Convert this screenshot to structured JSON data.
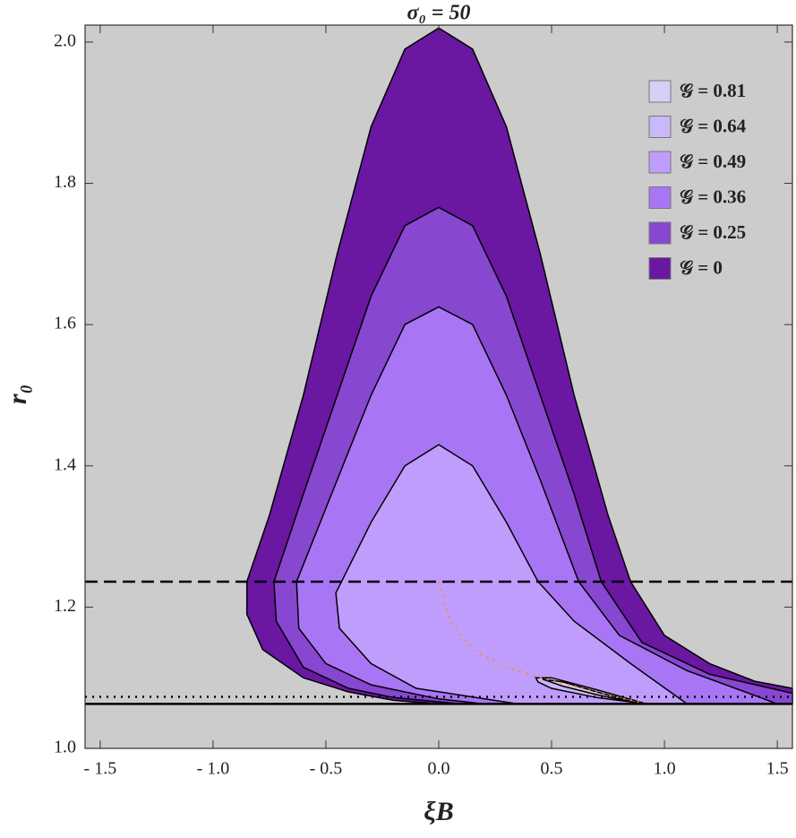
{
  "chart_data": {
    "type": "region",
    "title": "σ₀ = 50",
    "x_label": "ξB",
    "y_label": "r₀",
    "xlim": [
      -1.567,
      1.567
    ],
    "ylim": [
      1.0,
      2.024
    ],
    "xticks": [
      {
        "value": -1.5,
        "label": "- 1.5"
      },
      {
        "value": -1.0,
        "label": "- 1.0"
      },
      {
        "value": -0.5,
        "label": "- 0.5"
      },
      {
        "value": 0,
        "label": "0.0"
      },
      0.5,
      {
        "value": 1.0,
        "label": "1.0"
      },
      1.5
    ],
    "yticks": [
      {
        "value": 1.0,
        "label": "1.0"
      },
      1.2,
      1.4,
      1.6,
      1.8,
      {
        "value": 2.0,
        "label": "2.0"
      }
    ],
    "background": "#cccccc",
    "legend_position": "upper right",
    "series": [
      {
        "name": "𝒢 = 0.81",
        "color": "#d6cff7",
        "x": [
          0.46,
          0.55,
          0.7,
          0.88,
          0.7,
          0.55
        ],
        "y": [
          1.098,
          1.094,
          1.08,
          1.064,
          1.076,
          1.088
        ]
      },
      {
        "name": "𝒢 = 0.64",
        "color": "#c9b8fb",
        "x": [
          0.43,
          0.5,
          0.7,
          0.92,
          0.7,
          0.5,
          0.44
        ],
        "y": [
          1.1,
          1.1,
          1.083,
          1.063,
          1.072,
          1.085,
          1.094
        ]
      },
      {
        "name": "𝒢 = 0.49",
        "color": "#bf9dfd",
        "x": [
          0.35,
          -0.1,
          -0.3,
          -0.44,
          -0.456,
          -0.3,
          -0.15,
          0,
          0.15,
          0.3,
          0.44,
          0.6,
          0.85,
          1.1
        ],
        "y": [
          1.063,
          1.085,
          1.12,
          1.17,
          1.22,
          1.32,
          1.4,
          1.43,
          1.4,
          1.32,
          1.236,
          1.18,
          1.12,
          1.063
        ]
      },
      {
        "name": "𝒢 = 0.36",
        "color": "#a876f5",
        "x": [
          0.2,
          0,
          -0.3,
          -0.5,
          -0.62,
          -0.63,
          -0.45,
          -0.3,
          -0.15,
          0,
          0.15,
          0.3,
          0.45,
          0.62,
          0.8,
          1.1,
          1.4,
          1.5
        ],
        "y": [
          1.063,
          1.07,
          1.09,
          1.12,
          1.17,
          1.236,
          1.38,
          1.5,
          1.6,
          1.625,
          1.6,
          1.5,
          1.38,
          1.236,
          1.16,
          1.11,
          1.075,
          1.063
        ]
      },
      {
        "name": "𝒢 = 0.25",
        "color": "#8747d0",
        "x": [
          0.1,
          -0.2,
          -0.4,
          -0.6,
          -0.72,
          -0.73,
          -0.6,
          -0.45,
          -0.3,
          -0.15,
          0,
          0.15,
          0.3,
          0.45,
          0.6,
          0.72,
          0.9,
          1.2,
          1.567,
          1.567
        ],
        "y": [
          1.063,
          1.072,
          1.085,
          1.115,
          1.18,
          1.236,
          1.36,
          1.5,
          1.64,
          1.74,
          1.766,
          1.74,
          1.64,
          1.5,
          1.36,
          1.236,
          1.15,
          1.105,
          1.078,
          1.063
        ]
      },
      {
        "name": "𝒢 = 0",
        "color": "#6a17a2",
        "x": [
          0,
          -0.2,
          -0.4,
          -0.6,
          -0.78,
          -0.85,
          -0.85,
          -0.75,
          -0.6,
          -0.45,
          -0.3,
          -0.15,
          0,
          0.15,
          0.3,
          0.45,
          0.6,
          0.75,
          0.85,
          1.0,
          1.2,
          1.4,
          1.567,
          1.567
        ],
        "y": [
          1.063,
          1.068,
          1.08,
          1.1,
          1.14,
          1.19,
          1.236,
          1.33,
          1.5,
          1.7,
          1.88,
          1.99,
          2.02,
          1.99,
          1.88,
          1.7,
          1.5,
          1.33,
          1.236,
          1.16,
          1.12,
          1.095,
          1.085,
          1.063
        ]
      }
    ],
    "curves": [
      {
        "color": "#ff8c1a",
        "style": "dotted",
        "x": [
          0,
          0.05,
          0.15,
          0.3,
          0.45,
          0.6,
          0.75,
          0.9
        ],
        "y": [
          1.236,
          1.18,
          1.14,
          1.115,
          1.1,
          1.088,
          1.075,
          1.065
        ]
      }
    ],
    "hlines": [
      {
        "value": 1.236,
        "style": "dashed",
        "color": "#000000"
      },
      {
        "value": 1.073,
        "style": "dotted",
        "color": "#000000"
      },
      {
        "value": 1.063,
        "style": "solid",
        "color": "#000000"
      }
    ]
  }
}
